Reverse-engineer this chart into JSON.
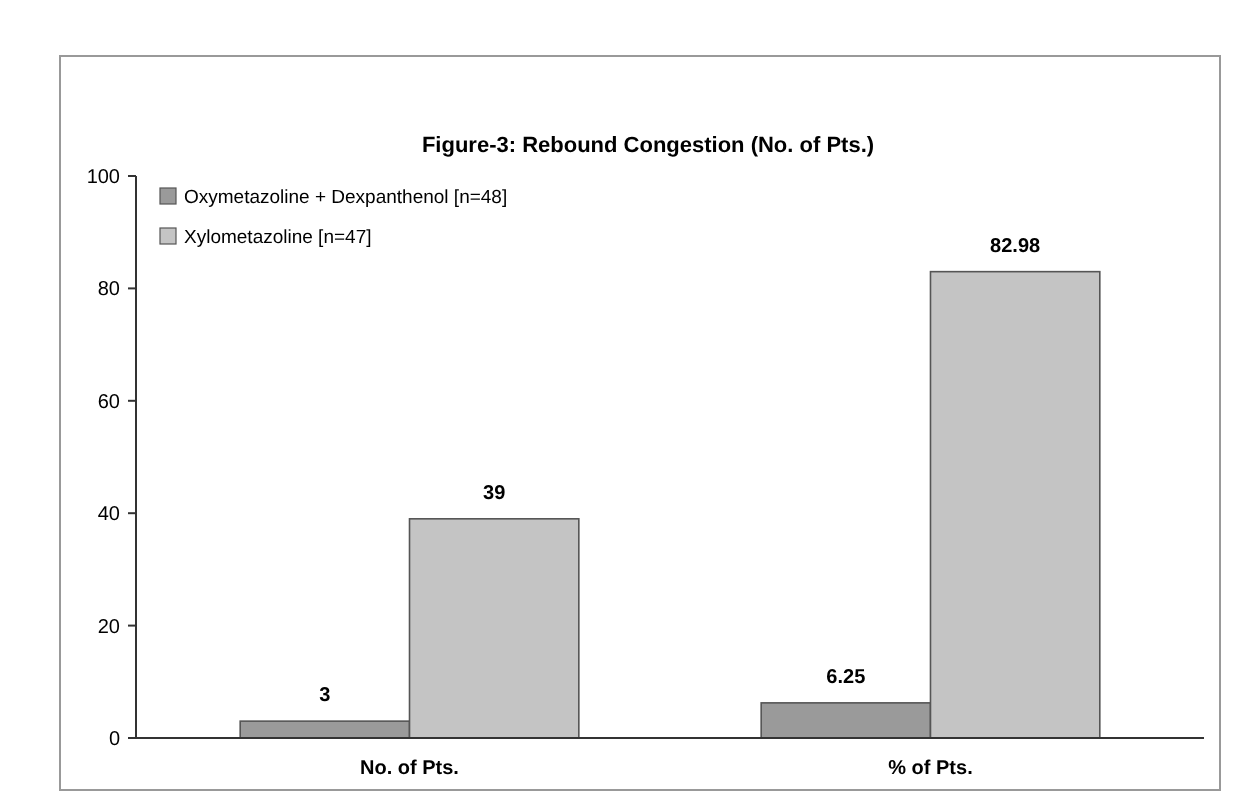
{
  "chart_data": {
    "type": "bar",
    "title": "Figure-3: Rebound Congestion (No. of Pts.)",
    "categories": [
      "No. of Pts.",
      "% of Pts."
    ],
    "series": [
      {
        "name": "Oxymetazoline + Dexpanthenol [n=48]",
        "color": "#9a9a9a",
        "values": [
          3,
          6.25
        ]
      },
      {
        "name": "Xylometazoline [n=47]",
        "color": "#c4c4c4",
        "values": [
          39,
          82.98
        ]
      }
    ],
    "ylim": [
      0,
      100
    ],
    "yticks": [
      0,
      20,
      40,
      60,
      80,
      100
    ],
    "grid": false,
    "legend": "top left",
    "data_labels": true
  }
}
